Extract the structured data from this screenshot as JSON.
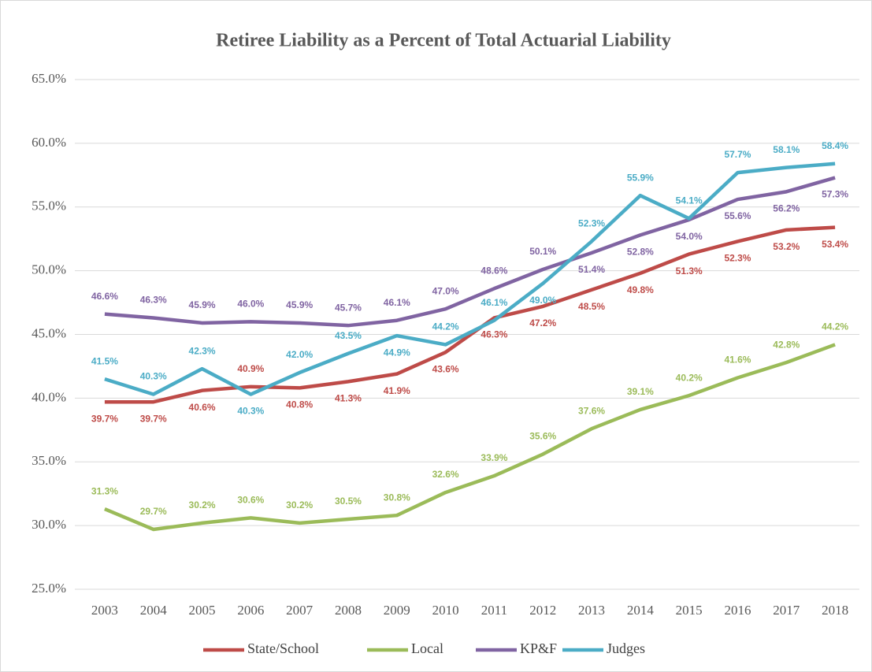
{
  "chart_data": {
    "type": "line",
    "title": "Retiree Liability as a Percent of Total Actuarial Liability",
    "categories": [
      "2003",
      "2004",
      "2005",
      "2006",
      "2007",
      "2008",
      "2009",
      "2010",
      "2011",
      "2012",
      "2013",
      "2014",
      "2015",
      "2016",
      "2017",
      "2018"
    ],
    "ylim": [
      25,
      65
    ],
    "yticks": [
      {
        "value": 25,
        "label": "25.0%"
      },
      {
        "value": 30,
        "label": "30.0%"
      },
      {
        "value": 35,
        "label": "35.0%"
      },
      {
        "value": 40,
        "label": "40.0%"
      },
      {
        "value": 45,
        "label": "45.0%"
      },
      {
        "value": 50,
        "label": "50.0%"
      },
      {
        "value": 55,
        "label": "55.0%"
      },
      {
        "value": 60,
        "label": "60.0%"
      },
      {
        "value": 65,
        "label": "65.0%"
      }
    ],
    "grid": true,
    "legend": "bottom",
    "series": [
      {
        "name": "State/School",
        "color": "#be4b48",
        "values": [
          39.7,
          39.7,
          40.6,
          40.9,
          40.8,
          41.3,
          41.9,
          43.6,
          46.3,
          47.2,
          48.5,
          49.8,
          51.3,
          52.3,
          53.2,
          53.4
        ],
        "value_labels": [
          "39.7%",
          "39.7%",
          "40.6%",
          "40.9%",
          "40.8%",
          "41.3%",
          "41.9%",
          "43.6%",
          "46.3%",
          "47.2%",
          "48.5%",
          "49.8%",
          "51.3%",
          "52.3%",
          "53.2%",
          "53.4%"
        ]
      },
      {
        "name": "Local",
        "color": "#9bbb59",
        "values": [
          31.3,
          29.7,
          30.2,
          30.6,
          30.2,
          30.5,
          30.8,
          32.6,
          33.9,
          35.6,
          37.6,
          39.1,
          40.2,
          41.6,
          42.8,
          44.2
        ],
        "value_labels": [
          "31.3%",
          "29.7%",
          "30.2%",
          "30.6%",
          "30.2%",
          "30.5%",
          "30.8%",
          "32.6%",
          "33.9%",
          "35.6%",
          "37.6%",
          "39.1%",
          "40.2%",
          "41.6%",
          "42.8%",
          "44.2%"
        ]
      },
      {
        "name": "KP&F",
        "color": "#8064a2",
        "values": [
          46.6,
          46.3,
          45.9,
          46.0,
          45.9,
          45.7,
          46.1,
          47.0,
          48.6,
          50.1,
          51.4,
          52.8,
          54.0,
          55.6,
          56.2,
          57.3
        ],
        "value_labels": [
          "46.6%",
          "46.3%",
          "45.9%",
          "46.0%",
          "45.9%",
          "45.7%",
          "46.1%",
          "47.0%",
          "48.6%",
          "50.1%",
          "51.4%",
          "52.8%",
          "54.0%",
          "55.6%",
          "56.2%",
          "57.3%"
        ]
      },
      {
        "name": "Judges",
        "color": "#4bacc6",
        "values": [
          41.5,
          40.3,
          42.3,
          40.3,
          42.0,
          43.5,
          44.9,
          44.2,
          46.1,
          49.0,
          52.3,
          55.9,
          54.1,
          57.7,
          58.1,
          58.4
        ],
        "value_labels": [
          "41.5%",
          "40.3%",
          "42.3%",
          "40.3%",
          "42.0%",
          "43.5%",
          "44.9%",
          "44.2%",
          "46.1%",
          "49.0%",
          "52.3%",
          "55.9%",
          "54.1%",
          "57.7%",
          "58.1%",
          "58.4%"
        ]
      }
    ]
  }
}
